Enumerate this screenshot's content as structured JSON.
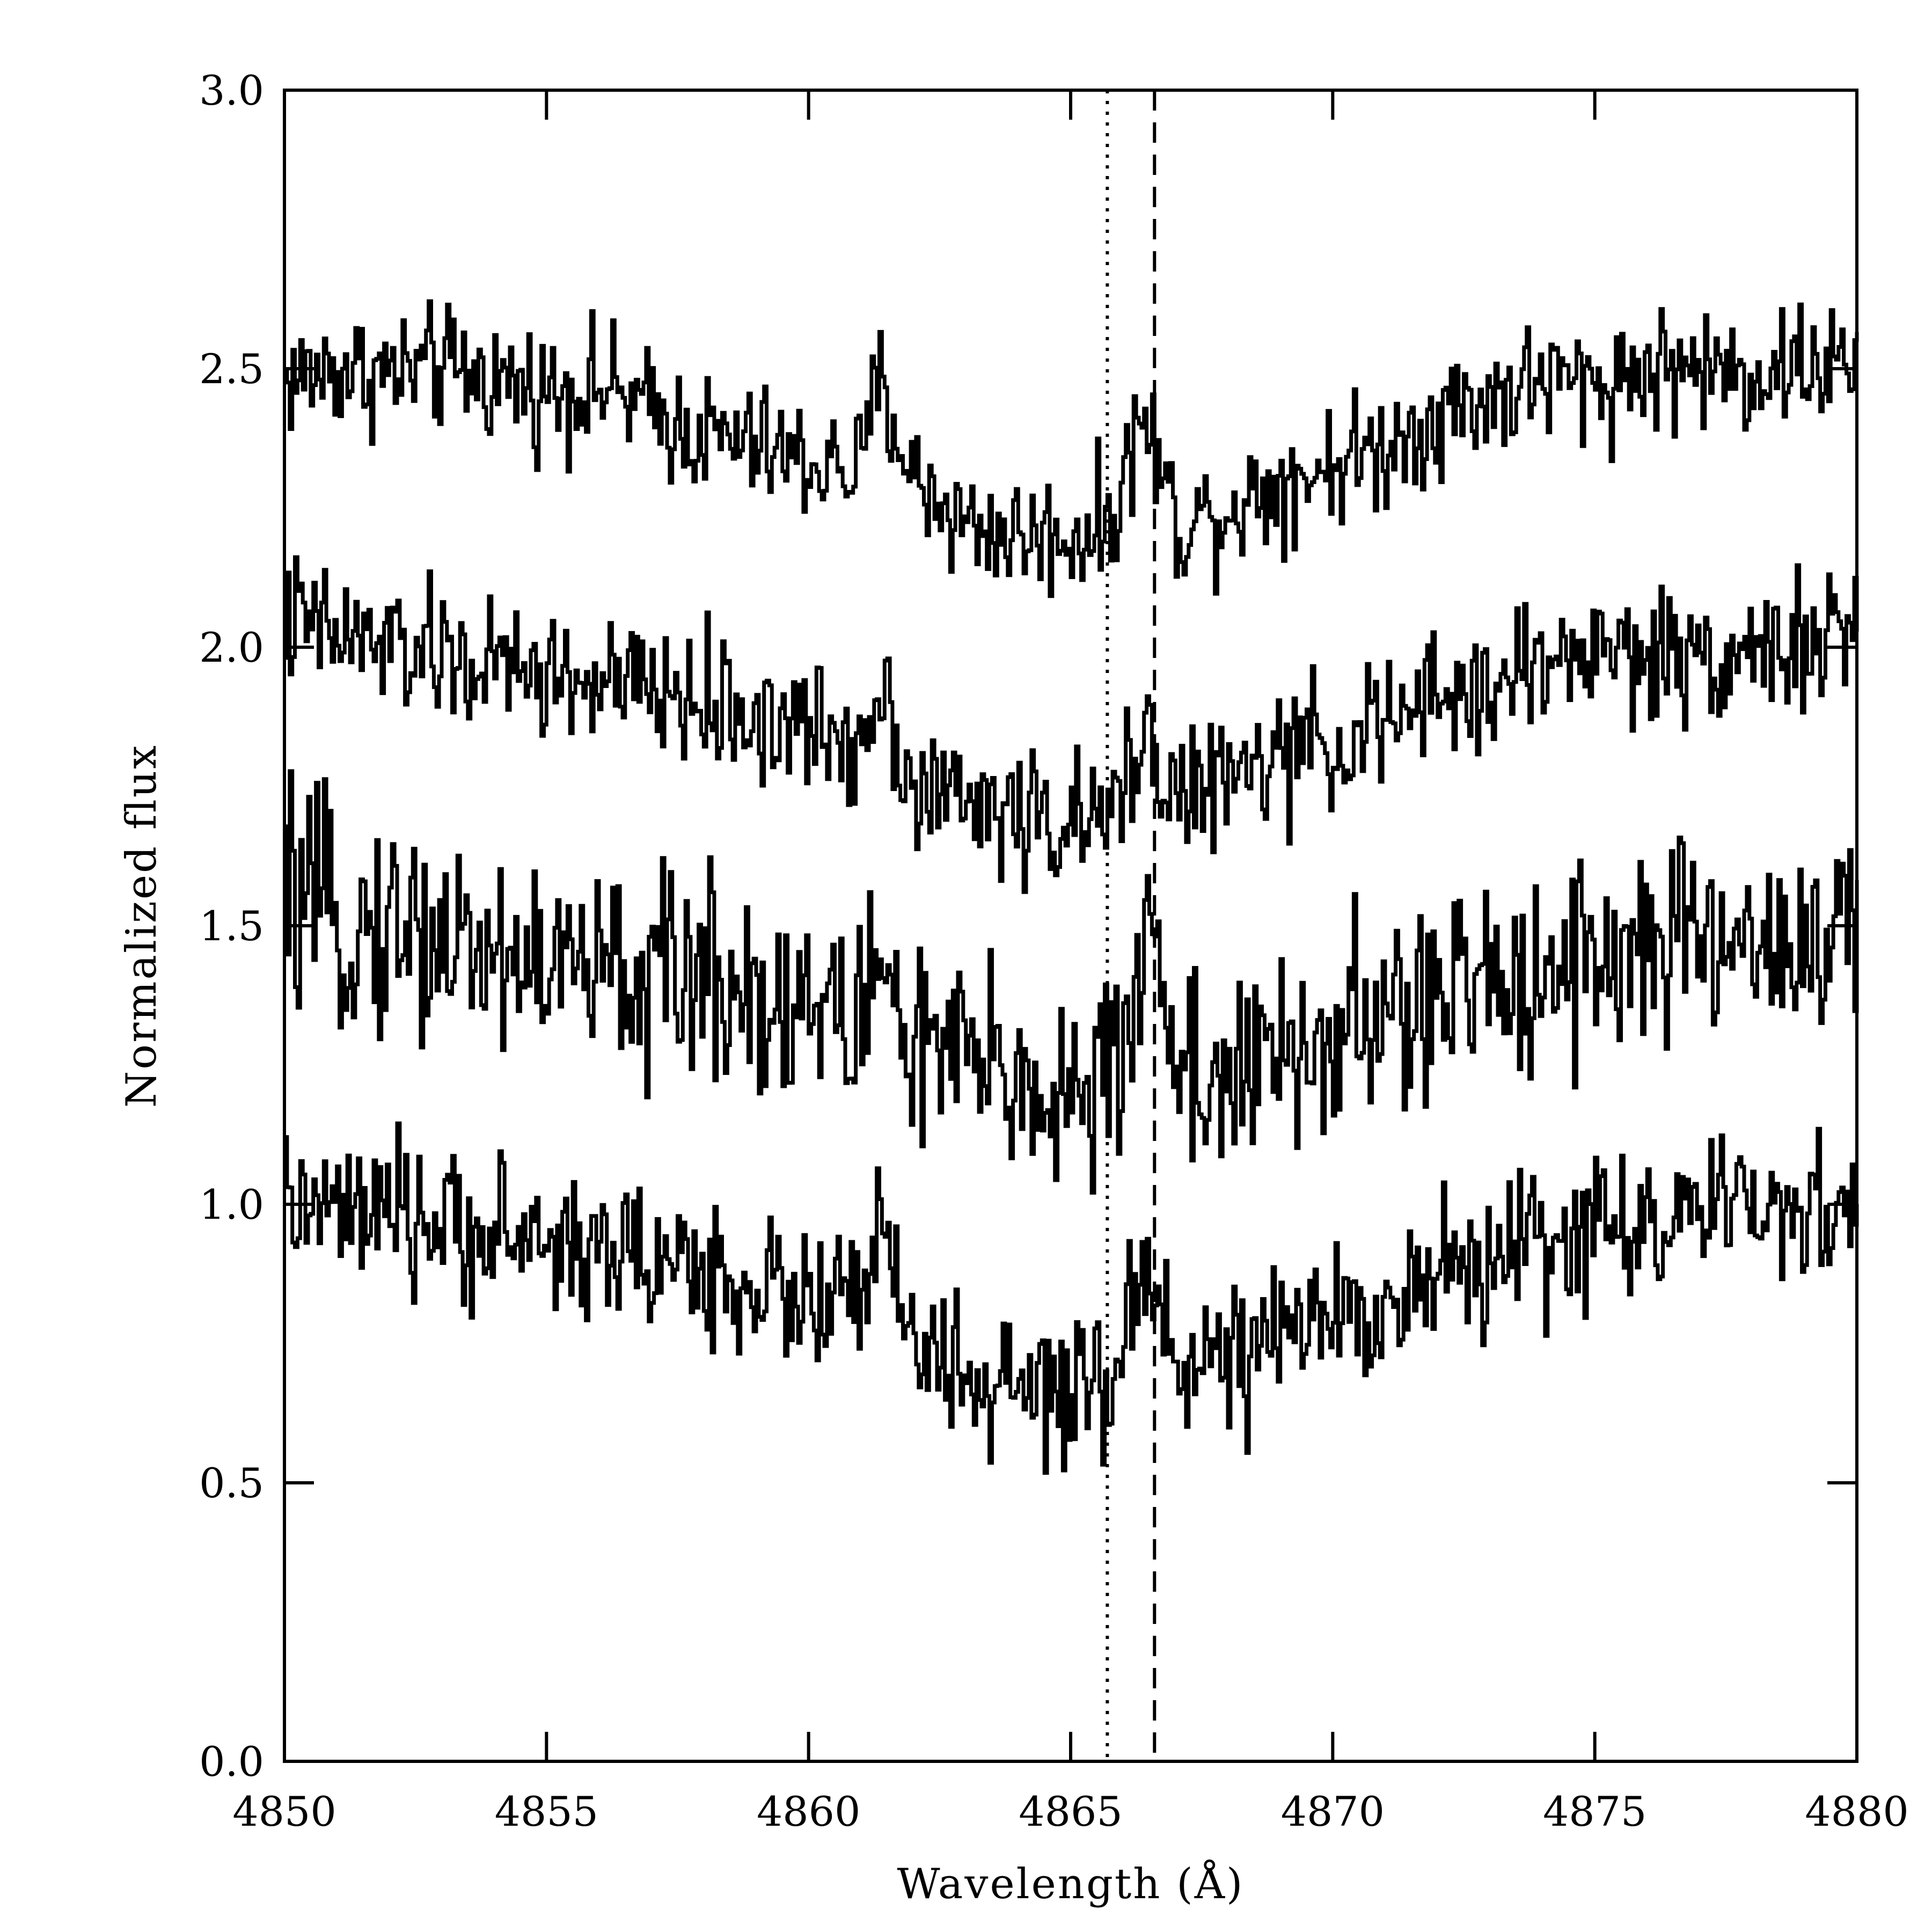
{
  "chart_data": {
    "type": "line",
    "title": "",
    "xlabel": "Wavelength (Å)",
    "ylabel": "Normalized flux",
    "xlim": [
      4850,
      4880
    ],
    "ylim": [
      0.0,
      3.0
    ],
    "xticks": [
      "4850",
      "4855",
      "4860",
      "4865",
      "4870",
      "4875",
      "4880"
    ],
    "yticks": [
      "0.0",
      "0.5",
      "1.0",
      "1.5",
      "2.0",
      "2.5",
      "3.0"
    ],
    "grid": false,
    "legend": "none",
    "line_color": "#000000",
    "reference_lines": [
      {
        "style": "dotted",
        "x": 4865.7
      },
      {
        "style": "dashed",
        "x": 4866.6
      }
    ],
    "series": [
      {
        "x": [
          4850,
          4851,
          4852,
          4853,
          4854,
          4855,
          4856,
          4857,
          4858,
          4859,
          4860,
          4861,
          4861.3,
          4862,
          4863,
          4864,
          4865,
          4865.7,
          4866,
          4866.3,
          4866.6,
          4867,
          4868,
          4869,
          4870,
          4871,
          4872,
          4873,
          4874,
          4875,
          4876,
          4877,
          4878,
          4879,
          4880
        ],
        "values": [
          2.48,
          2.5,
          2.49,
          2.5,
          2.48,
          2.46,
          2.47,
          2.42,
          2.38,
          2.36,
          2.33,
          2.32,
          2.48,
          2.3,
          2.22,
          2.2,
          2.2,
          2.22,
          2.3,
          2.42,
          2.35,
          2.22,
          2.25,
          2.3,
          2.33,
          2.36,
          2.42,
          2.45,
          2.48,
          2.47,
          2.5,
          2.5,
          2.49,
          2.51,
          2.5
        ]
      },
      {
        "x": [
          4850,
          4851,
          4852,
          4853,
          4854,
          4855,
          4856,
          4857,
          4858,
          4859,
          4860,
          4861,
          4861.3,
          4862,
          4863,
          4864,
          4865,
          4865.7,
          4866,
          4866.3,
          4866.6,
          4867,
          4868,
          4869,
          4870,
          4871,
          4872,
          4873,
          4874,
          4875,
          4876,
          4877,
          4878,
          4879,
          4880
        ],
        "values": [
          2.05,
          2.02,
          2.0,
          1.98,
          1.96,
          1.95,
          1.93,
          1.92,
          1.9,
          1.87,
          1.85,
          1.83,
          1.95,
          1.75,
          1.72,
          1.7,
          1.68,
          1.68,
          1.75,
          1.85,
          1.82,
          1.73,
          1.76,
          1.8,
          1.83,
          1.86,
          1.9,
          1.93,
          1.97,
          2.0,
          1.98,
          1.99,
          2.0,
          2.0,
          2.02
        ]
      },
      {
        "x": [
          4850,
          4851,
          4852,
          4853,
          4854,
          4855,
          4856,
          4857,
          4858,
          4859,
          4860,
          4861,
          4861.3,
          4862,
          4863,
          4864,
          4865,
          4865.7,
          4866,
          4866.3,
          4866.6,
          4867,
          4868,
          4869,
          4870,
          4871,
          4872,
          4873,
          4874,
          4875,
          4876,
          4877,
          4878,
          4879,
          4880
        ],
        "values": [
          1.55,
          1.5,
          1.5,
          1.48,
          1.45,
          1.43,
          1.42,
          1.4,
          1.42,
          1.38,
          1.35,
          1.33,
          1.45,
          1.28,
          1.25,
          1.22,
          1.2,
          1.2,
          1.28,
          1.45,
          1.5,
          1.25,
          1.22,
          1.25,
          1.3,
          1.33,
          1.36,
          1.4,
          1.43,
          1.46,
          1.45,
          1.47,
          1.48,
          1.47,
          1.48
        ]
      },
      {
        "x": [
          4850,
          4851,
          4852,
          4853,
          4854,
          4855,
          4856,
          4857,
          4858,
          4859,
          4860,
          4861,
          4861.3,
          4862,
          4863,
          4864,
          4865,
          4865.7,
          4866,
          4866.3,
          4866.6,
          4867,
          4868,
          4869,
          4870,
          4871,
          4872,
          4873,
          4874,
          4875,
          4876,
          4877,
          4878,
          4879,
          4880
        ],
        "values": [
          1.0,
          0.98,
          0.97,
          0.96,
          0.95,
          0.93,
          0.92,
          0.9,
          0.88,
          0.85,
          0.83,
          0.82,
          0.95,
          0.75,
          0.68,
          0.66,
          0.65,
          0.65,
          0.75,
          0.88,
          0.85,
          0.73,
          0.72,
          0.75,
          0.8,
          0.83,
          0.87,
          0.9,
          0.93,
          0.96,
          0.97,
          0.98,
          0.98,
          0.99,
          1.0
        ]
      }
    ]
  }
}
